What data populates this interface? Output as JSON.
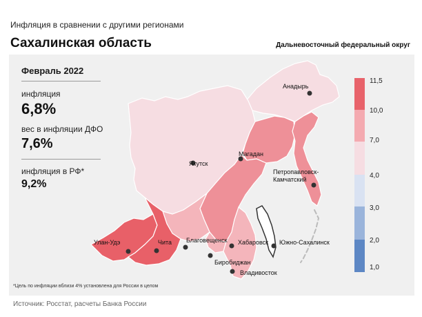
{
  "header": {
    "subtitle": "Инфляция  в сравнении  с другими  регионами",
    "region": "Сахалинская область",
    "district": "Дальневосточный федеральный округ"
  },
  "stats": {
    "period": "Февраль 2022",
    "inflation_label": "инфляция",
    "inflation_value": "6,8%",
    "weight_label": "вес в инфляции ДФО",
    "weight_value": "7,6%",
    "rf_label": "инфляция в РФ*",
    "rf_value": "9,2%"
  },
  "map": {
    "cities": [
      {
        "name": "Анадырь"
      },
      {
        "name": "Якутск"
      },
      {
        "name": "Магадан"
      },
      {
        "name": "Петропавловск-\nКамчатский"
      },
      {
        "name": "Улан-Удэ"
      },
      {
        "name": "Чита"
      },
      {
        "name": "Благовещенск"
      },
      {
        "name": "Хабаровск"
      },
      {
        "name": "Южно-Сахалинск"
      },
      {
        "name": "Биробиджан"
      },
      {
        "name": "Владивосток"
      }
    ],
    "colors": {
      "very_light": "#f6dde2",
      "light": "#f4b5bb",
      "medium": "#ee9098",
      "dark": "#e86068",
      "sakhalin": "#ffffff",
      "border": "#ffffff"
    }
  },
  "legend": {
    "ticks": [
      "11,5",
      "10,0",
      "7,0",
      "4,0",
      "3,0",
      "2,0",
      "1,0"
    ],
    "colors": [
      "#e8636b",
      "#f4aab0",
      "#f6dde2",
      "#d9e2f2",
      "#9ab4db",
      "#5d87c4"
    ]
  },
  "footnote": "*Цель по инфляции вблизи 4% установлена для России в целом",
  "source": "Источник: Росстат, расчеты Банка России"
}
